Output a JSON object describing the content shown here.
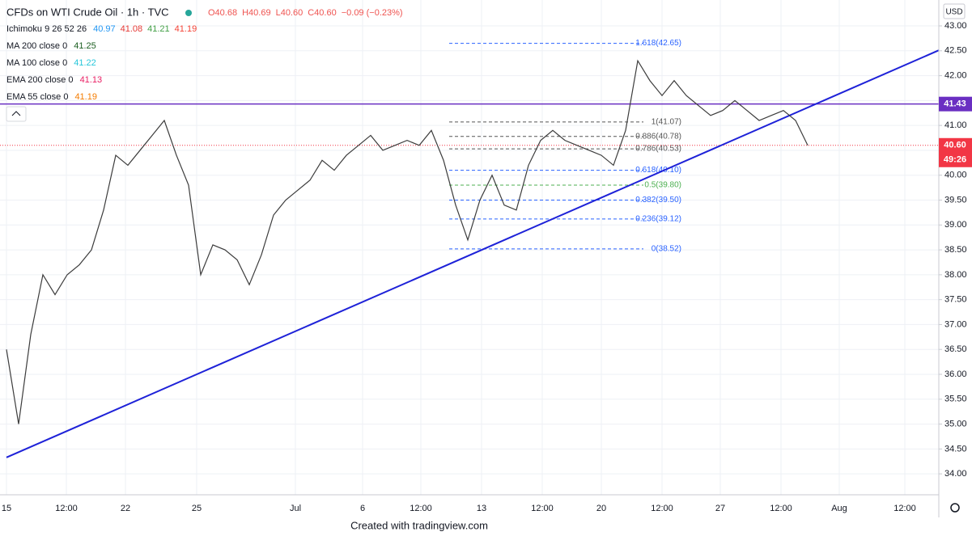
{
  "chart_data": {
    "type": "line",
    "title": "CFDs on WTI Crude Oil · 1h · TVC",
    "ohlc": [
      "O40.68",
      "H40.69",
      "L40.60",
      "C40.60",
      "−0.09 (−0.23%)"
    ],
    "indicators": [
      {
        "name": "Ichimoku 9 26 52 26",
        "values": [
          "40.97",
          "41.08",
          "41.21",
          "41.19"
        ],
        "colors": [
          "#2196f3",
          "#e53935",
          "#43a047",
          "#f44336"
        ]
      },
      {
        "name": "MA 200 close 0",
        "values": [
          "41.25"
        ],
        "colors": [
          "#1b5e20"
        ]
      },
      {
        "name": "MA 100 close 0",
        "values": [
          "41.22"
        ],
        "colors": [
          "#26c6da"
        ]
      },
      {
        "name": "EMA 200 close 0",
        "values": [
          "41.13"
        ],
        "colors": [
          "#e91e63"
        ]
      },
      {
        "name": "EMA 55 close 0",
        "values": [
          "41.19"
        ],
        "colors": [
          "#f57c00"
        ]
      }
    ],
    "currency": "USD",
    "x_labels": [
      "15",
      "12:00",
      "22",
      "25",
      "Jul",
      "6",
      "12:00",
      "13",
      "12:00",
      "20",
      "12:00",
      "27",
      "12:00",
      "Aug",
      "12:00"
    ],
    "series": [
      {
        "color": "#3c3c3c",
        "values": [
          36.5,
          35.0,
          36.8,
          38.0,
          37.6,
          38.0,
          38.2,
          38.5,
          39.3,
          40.4,
          40.2,
          40.5,
          40.8,
          41.1,
          40.4,
          39.8,
          38.0,
          38.6,
          38.5,
          38.3,
          37.8,
          38.4,
          39.2,
          39.5,
          39.7,
          39.9,
          40.3,
          40.1,
          40.4,
          40.6,
          40.8,
          40.5,
          40.6,
          40.7,
          40.6,
          40.9,
          40.3,
          39.4,
          38.7,
          39.5,
          40.0,
          39.4,
          39.3,
          40.2,
          40.7,
          40.9,
          40.7,
          40.6,
          40.5,
          40.4,
          40.2,
          40.9,
          42.3,
          41.9,
          41.6,
          41.9,
          41.6,
          41.4,
          41.2,
          41.3,
          41.5,
          41.3,
          41.1,
          41.2,
          41.3,
          41.1,
          40.6
        ]
      }
    ],
    "ylim": [
      33.58,
      43.52
    ],
    "yticks": [
      {
        "value": 34,
        "label": "34.00"
      },
      {
        "value": 34.5,
        "label": "34.50"
      },
      {
        "value": 35,
        "label": "35.00"
      },
      {
        "value": 35.5,
        "label": "35.50"
      },
      {
        "value": 36,
        "label": "36.00"
      },
      {
        "value": 36.5,
        "label": "36.50"
      },
      {
        "value": 37,
        "label": "37.00"
      },
      {
        "value": 37.5,
        "label": "37.50"
      },
      {
        "value": 38,
        "label": "38.00"
      },
      {
        "value": 38.5,
        "label": "38.50"
      },
      {
        "value": 39,
        "label": "39.00"
      },
      {
        "value": 39.5,
        "label": "39.50"
      },
      {
        "value": 40,
        "label": "40.00"
      },
      {
        "value": 40.5,
        "label": "40.50"
      },
      {
        "value": 41,
        "label": "41.00"
      },
      {
        "value": 41.5,
        "label": "41.50"
      },
      {
        "value": 42,
        "label": "42.00"
      },
      {
        "value": 42.5,
        "label": "42.50"
      },
      {
        "value": 43,
        "label": "43.00"
      }
    ],
    "grid": true,
    "trendline": {
      "values": [
        34.33,
        42.51
      ],
      "color": "#1e22d8"
    },
    "hline": {
      "value": 41.43,
      "color": "#6a2fc2"
    },
    "last_price": {
      "value": 40.6,
      "label": "40.60",
      "countdown": "49:26",
      "color": "#f23645"
    },
    "fib": [
      {
        "value": 42.65,
        "label": "1.618(42.65)",
        "color": "#2962ff"
      },
      {
        "value": 41.07,
        "label": "1(41.07)",
        "color": "#555555"
      },
      {
        "value": 40.78,
        "label": "0.886(40.78)",
        "color": "#555555"
      },
      {
        "value": 40.53,
        "label": "0.786(40.53)",
        "color": "#555555"
      },
      {
        "value": 40.1,
        "label": "0.618(40.10)",
        "color": "#2962ff"
      },
      {
        "value": 39.8,
        "label": "0.5(39.80)",
        "color": "#4caf50"
      },
      {
        "value": 39.5,
        "label": "0.382(39.50)",
        "color": "#2962ff"
      },
      {
        "value": 39.12,
        "label": "0.236(39.12)",
        "color": "#2962ff"
      },
      {
        "value": 38.52,
        "label": "0(38.52)",
        "color": "#2962ff"
      }
    ],
    "footer": "Created with tradingview.com"
  }
}
